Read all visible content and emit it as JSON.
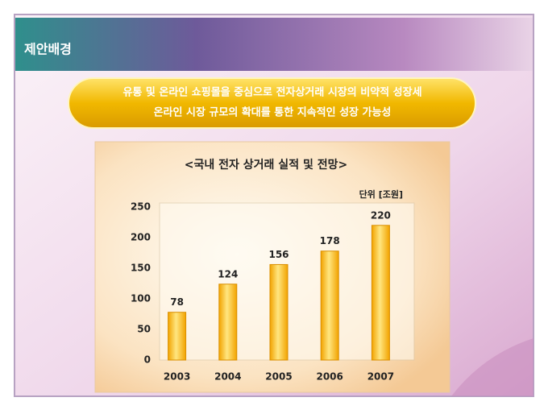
{
  "header": {
    "title": "제안배경"
  },
  "banner": {
    "lines": [
      "유통 및 온라인 쇼핑몰을 중심으로 전자상거래 시장의 비약적 성장세",
      "온라인 시장 규모의 확대를 통한 지속적인 성장 가능성"
    ]
  },
  "chart_data": {
    "type": "bar",
    "title": "<국내 전자 상거래 실적 및 전망>",
    "unit_label": "단위 [조원]",
    "categories": [
      "2003",
      "2004",
      "2005",
      "2006",
      "2007"
    ],
    "values": [
      78,
      124,
      156,
      178,
      220
    ],
    "color": "#f2a300",
    "ylim": [
      0,
      250
    ],
    "yticks": [
      0,
      50,
      100,
      150,
      200,
      250
    ],
    "grid": false
  }
}
